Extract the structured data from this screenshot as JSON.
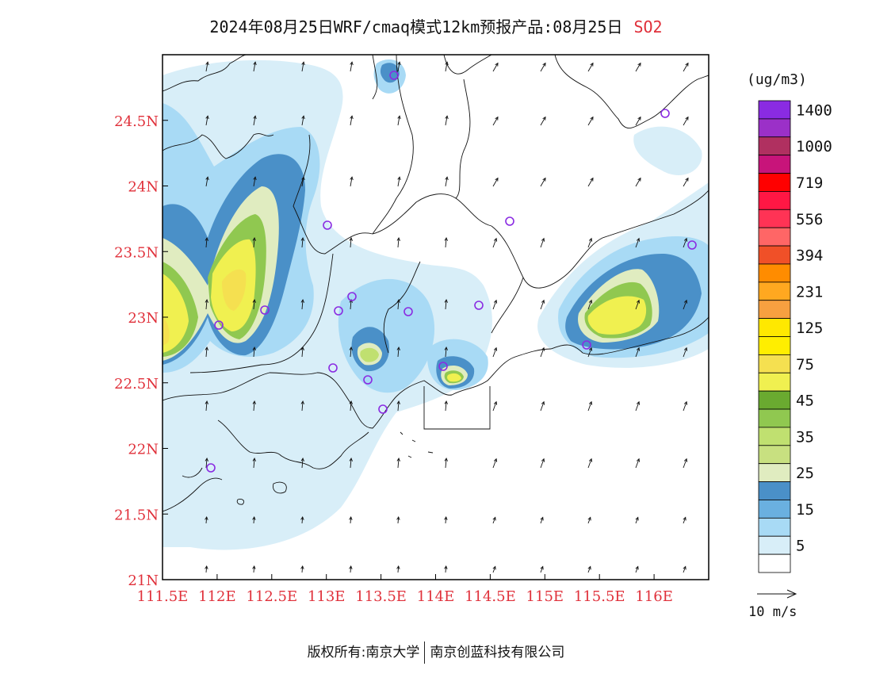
{
  "title": {
    "main": "2024年08月25日WRF/cmaq模式12km预报产品:08月25日",
    "pollutant": "SO2"
  },
  "colors": {
    "tick_label": "#e0303a",
    "frame": "#000000"
  },
  "map": {
    "lon_range": [
      111.5,
      116.5
    ],
    "lat_range": [
      21,
      25
    ],
    "lon_ticks": [
      "111.5E",
      "112E",
      "112.5E",
      "113E",
      "113.5E",
      "114E",
      "114.5E",
      "115E",
      "115.5E",
      "116E"
    ],
    "lat_ticks": [
      "21N",
      "21.5N",
      "22N",
      "22.5N",
      "23N",
      "23.5N",
      "24N",
      "24.5N"
    ]
  },
  "legend": {
    "units": "(ug/m3)",
    "levels": [
      {
        "label": "1400",
        "color": "#8a2be2"
      },
      {
        "label": "",
        "color": "#9b30c8"
      },
      {
        "label": "1000",
        "color": "#b03060"
      },
      {
        "label": "",
        "color": "#c8147a"
      },
      {
        "label": "719",
        "color": "#ff0000"
      },
      {
        "label": "",
        "color": "#ff1744"
      },
      {
        "label": "556",
        "color": "#ff3355"
      },
      {
        "label": "",
        "color": "#ff6666"
      },
      {
        "label": "394",
        "color": "#f05028"
      },
      {
        "label": "",
        "color": "#ff8c00"
      },
      {
        "label": "231",
        "color": "#ffa820"
      },
      {
        "label": "",
        "color": "#f7a040"
      },
      {
        "label": "125",
        "color": "#ffe800"
      },
      {
        "label": "",
        "color": "#ffee00"
      },
      {
        "label": "75",
        "color": "#f5e050"
      },
      {
        "label": "",
        "color": "#f0f050"
      },
      {
        "label": "45",
        "color": "#6aaa30"
      },
      {
        "label": "",
        "color": "#90c850"
      },
      {
        "label": "35",
        "color": "#c0e070"
      },
      {
        "label": "",
        "color": "#c8e080"
      },
      {
        "label": "25",
        "color": "#e0ecc0"
      },
      {
        "label": "",
        "color": "#4a90c8"
      },
      {
        "label": "15",
        "color": "#6ab0e0"
      },
      {
        "label": "",
        "color": "#a8daf5"
      },
      {
        "label": "5",
        "color": "#d8eef8"
      },
      {
        "label": "",
        "color": "#ffffff"
      }
    ]
  },
  "wind_reference": "10 m/s",
  "footer": {
    "left": "版权所有:南京大学",
    "right": "南京创蓝科技有限公司"
  }
}
